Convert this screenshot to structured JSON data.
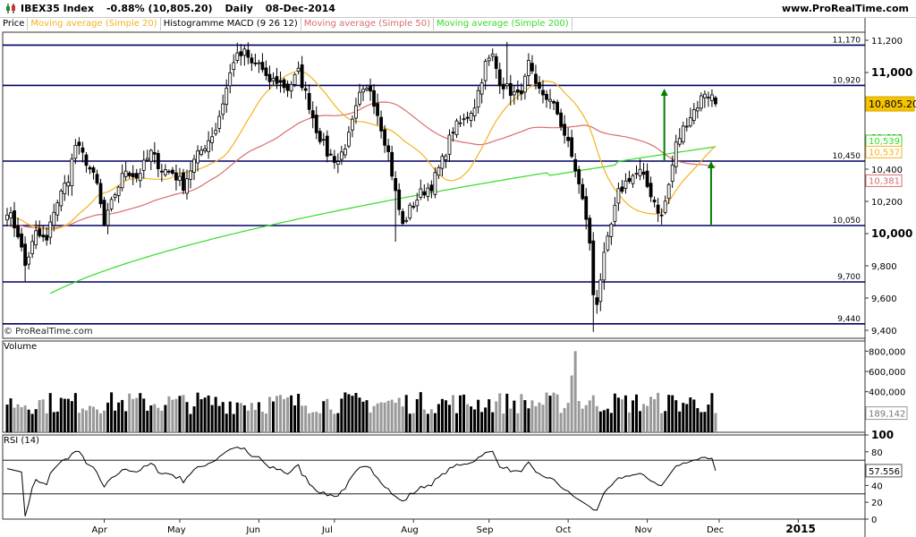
{
  "header": {
    "symbol": "IBEX35 Index",
    "change": "-0.88% (10,805.20)",
    "period": "Daily",
    "date": "08-Dec-2014",
    "site": "www.ProRealTime.com"
  },
  "legend": {
    "price": "Price",
    "ma20": "Moving average (Simple 20)",
    "macd": "Histogramme MACD (9 26 12)",
    "ma50": "Moving average (Simple 50)",
    "ma200": "Moving average (Simple 200)"
  },
  "watermark": "© ProRealTime.com",
  "colors": {
    "candle": "#000000",
    "ma20": "#f5b21c",
    "ma50": "#d86d6d",
    "ma200": "#33dd22",
    "hline": "#000066",
    "arrow": "#008000",
    "volume_up": "#000000",
    "volume_down": "#999999",
    "rsi": "#000000",
    "rsi_hl": "#8a1fa0"
  },
  "chart_data": [
    {
      "type": "candlestick",
      "name": "price",
      "ylim": [
        9350,
        11250
      ],
      "yticks": [
        9400,
        9600,
        9800,
        10000,
        10200,
        10400,
        10600,
        10800,
        11000,
        11200
      ],
      "ytick_labels": [
        "9,400",
        "9,600",
        "9,800",
        "10,000",
        "10,200",
        "10,400",
        "10,600",
        "10,800",
        "11,000",
        "11,200"
      ],
      "major_ticks": [
        10000,
        11000
      ],
      "x_labels": [
        "Apr",
        "May",
        "Jun",
        "Jul",
        "Aug",
        "Sep",
        "Oct",
        "Nov",
        "Dec",
        "2015"
      ],
      "x_label_bars": [
        27,
        48,
        70,
        91,
        113,
        134,
        156,
        178,
        198,
        220
      ],
      "bar_count": 198,
      "horizontal_levels": [
        {
          "value": 11170,
          "label": "11,170"
        },
        {
          "value": 10920,
          "label": "10,920"
        },
        {
          "value": 10450,
          "label": "10,450"
        },
        {
          "value": 10050,
          "label": "10,050"
        },
        {
          "value": 9700,
          "label": "9,700"
        },
        {
          "value": 9440,
          "label": "9,440"
        }
      ],
      "last_value_tags": [
        {
          "label": "10,805.20",
          "value": 10805.2,
          "series": "price"
        },
        {
          "label": "10,539",
          "value": 10539,
          "series": "ma200"
        },
        {
          "label": "10,537",
          "value": 10537,
          "series": "ma20"
        },
        {
          "label": "10,381",
          "value": 10381,
          "series": "ma50"
        }
      ],
      "arrows": [
        {
          "bar": 183,
          "from": 10450,
          "to": 10900
        },
        {
          "bar": 196,
          "from": 10050,
          "to": 10450
        }
      ],
      "price_waypoints": [
        [
          0,
          10150
        ],
        [
          3,
          10000
        ],
        [
          5,
          9800
        ],
        [
          8,
          10000
        ],
        [
          11,
          9950
        ],
        [
          13,
          10150
        ],
        [
          17,
          10350
        ],
        [
          19,
          10550
        ],
        [
          22,
          10450
        ],
        [
          25,
          10300
        ],
        [
          27,
          10050
        ],
        [
          30,
          10250
        ],
        [
          33,
          10400
        ],
        [
          36,
          10350
        ],
        [
          40,
          10500
        ],
        [
          43,
          10400
        ],
        [
          46,
          10380
        ],
        [
          49,
          10300
        ],
        [
          52,
          10450
        ],
        [
          55,
          10550
        ],
        [
          58,
          10650
        ],
        [
          61,
          10900
        ],
        [
          63,
          11080
        ],
        [
          66,
          11120
        ],
        [
          68,
          11050
        ],
        [
          70,
          11060
        ],
        [
          72,
          10950
        ],
        [
          75,
          10950
        ],
        [
          78,
          10900
        ],
        [
          81,
          11000
        ],
        [
          84,
          10800
        ],
        [
          86,
          10650
        ],
        [
          89,
          10500
        ],
        [
          92,
          10450
        ],
        [
          95,
          10600
        ],
        [
          98,
          10850
        ],
        [
          101,
          10900
        ],
        [
          103,
          10750
        ],
        [
          106,
          10500
        ],
        [
          108,
          10250
        ],
        [
          110,
          10050
        ],
        [
          112,
          10150
        ],
        [
          115,
          10250
        ],
        [
          118,
          10300
        ],
        [
          121,
          10450
        ],
        [
          124,
          10650
        ],
        [
          127,
          10700
        ],
        [
          130,
          10800
        ],
        [
          133,
          11050
        ],
        [
          135,
          11100
        ],
        [
          137,
          10950
        ],
        [
          139,
          10900
        ],
        [
          142,
          10850
        ],
        [
          144,
          10950
        ],
        [
          145,
          11050
        ],
        [
          147,
          10900
        ],
        [
          150,
          10850
        ],
        [
          153,
          10750
        ],
        [
          156,
          10550
        ],
        [
          158,
          10400
        ],
        [
          160,
          10200
        ],
        [
          161,
          10100
        ],
        [
          163,
          9750
        ],
        [
          164,
          9600
        ],
        [
          166,
          9850
        ],
        [
          168,
          10050
        ],
        [
          170,
          10250
        ],
        [
          173,
          10350
        ],
        [
          176,
          10380
        ],
        [
          179,
          10250
        ],
        [
          182,
          10100
        ],
        [
          184,
          10300
        ],
        [
          186,
          10550
        ],
        [
          189,
          10700
        ],
        [
          192,
          10800
        ],
        [
          194,
          10880
        ],
        [
          196,
          10850
        ],
        [
          197,
          10805
        ]
      ]
    },
    {
      "type": "bar",
      "name": "Volume",
      "ylim": [
        0,
        900000
      ],
      "yticks": [
        400000,
        600000,
        800000
      ],
      "ytick_labels": [
        "400,000",
        "600,000",
        "800,000"
      ],
      "last_value_label": "189,142",
      "last_value": 189142
    },
    {
      "type": "line",
      "name": "RSI (14)",
      "ylim": [
        0,
        100
      ],
      "yticks": [
        0,
        20,
        40,
        60,
        80,
        100
      ],
      "ytick_labels": [
        "0",
        "20",
        "40",
        "60",
        "80",
        "100"
      ],
      "upper_band": 70,
      "lower_band": 30,
      "last_value_label": "57.556",
      "last_value": 57.556
    }
  ]
}
